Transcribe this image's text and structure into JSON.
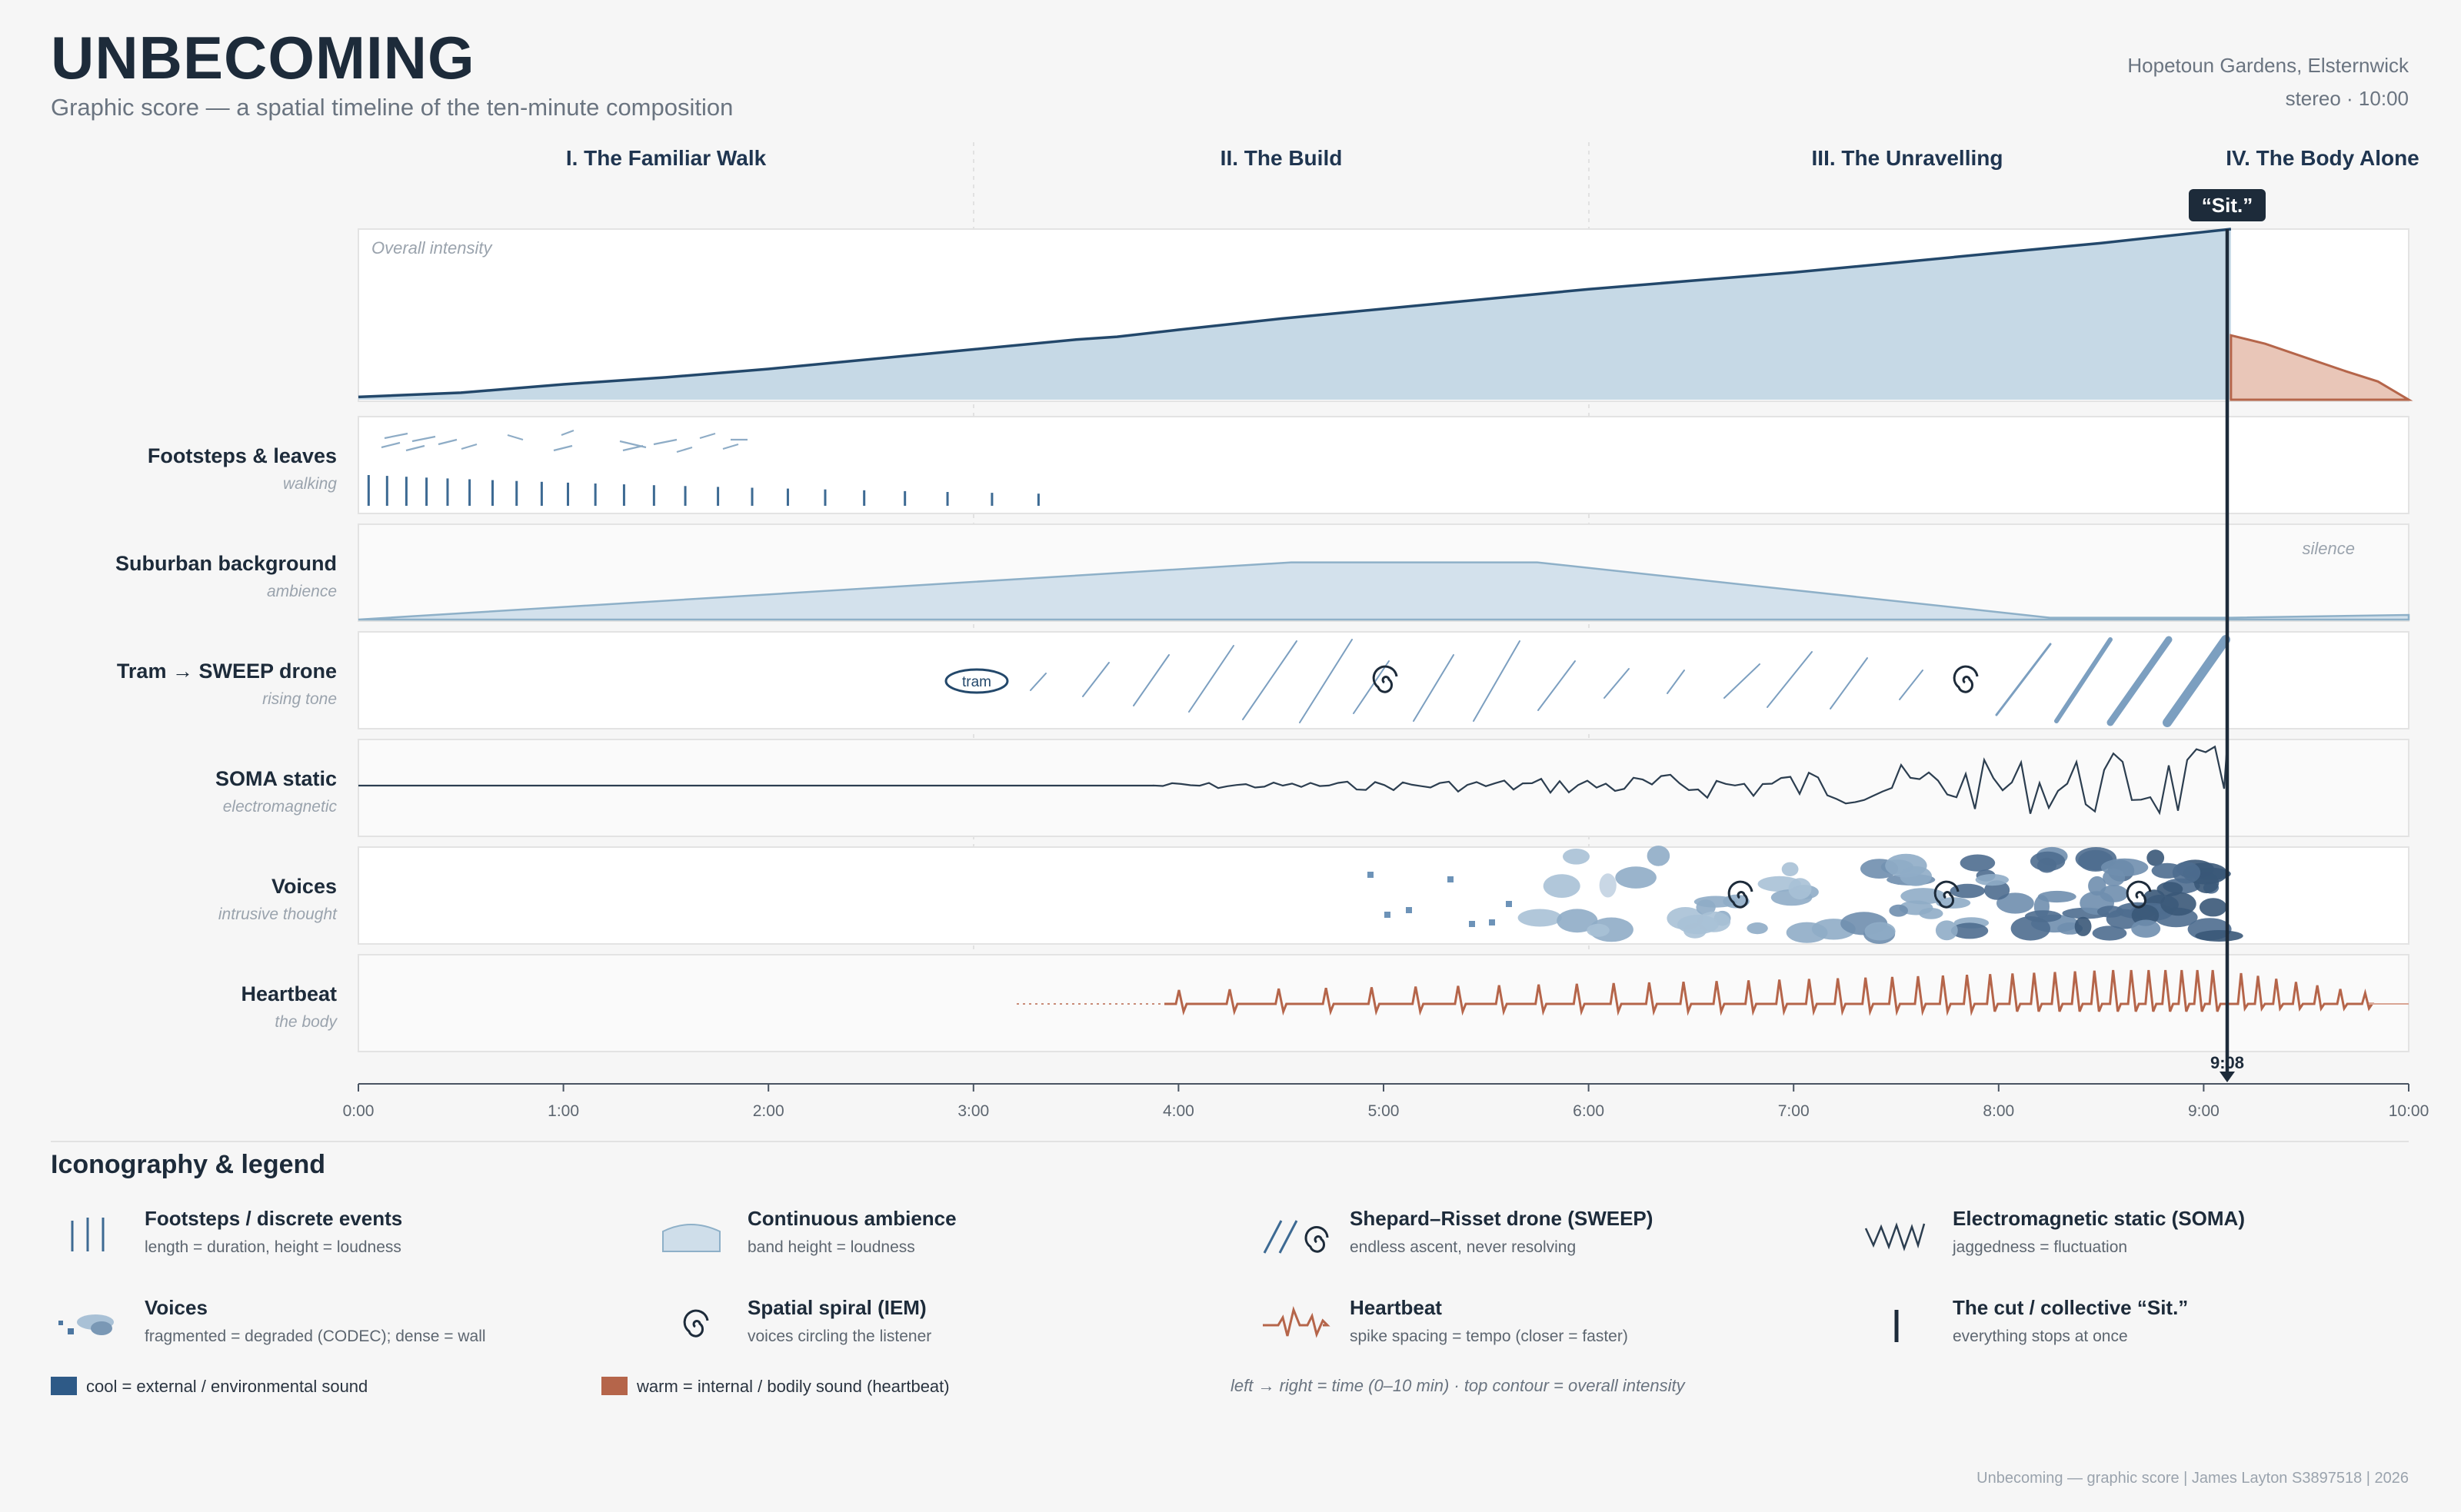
{
  "header": {
    "title": "UNBECOMING",
    "subtitle": "Graphic score — a spatial timeline of the ten-minute composition",
    "venue": "Hopetoun Gardens, Elsternwick",
    "format": "stereo · 10:00"
  },
  "sections": [
    {
      "label": "I. The Familiar Walk",
      "center_min": 1.5
    },
    {
      "label": "II. The Build",
      "center_min": 4.5
    },
    {
      "label": "III. The Unravelling",
      "center_min": 7.55
    },
    {
      "label": "IV. The Body Alone",
      "center_min": 9.6
    }
  ],
  "cut": {
    "label": "“Sit.”",
    "time_label": "9:08",
    "time_min": 9.133
  },
  "intensity": {
    "label": "Overall intensity",
    "rise": [
      [
        0,
        0.02
      ],
      [
        0.5,
        0.05
      ],
      [
        1,
        0.11
      ],
      [
        1.5,
        0.16
      ],
      [
        2,
        0.22
      ],
      [
        2.5,
        0.29
      ],
      [
        3,
        0.36
      ],
      [
        3.5,
        0.43
      ],
      [
        3.7,
        0.45
      ],
      [
        4,
        0.5
      ],
      [
        4.5,
        0.58
      ],
      [
        5,
        0.65
      ],
      [
        5.5,
        0.72
      ],
      [
        6,
        0.79
      ],
      [
        6.5,
        0.85
      ],
      [
        7,
        0.91
      ],
      [
        7.5,
        0.98
      ],
      [
        8,
        1.05
      ],
      [
        8.5,
        1.12
      ],
      [
        9.133,
        1.22
      ]
    ],
    "fade": [
      [
        9.133,
        0.46
      ],
      [
        9.3,
        0.4
      ],
      [
        9.5,
        0.3
      ],
      [
        9.7,
        0.2
      ],
      [
        9.85,
        0.13
      ],
      [
        10,
        0.0
      ]
    ]
  },
  "lanes": [
    {
      "name": "Footsteps & leaves",
      "sub": "walking"
    },
    {
      "name": "Suburban background",
      "sub": "ambience",
      "note": "silence"
    },
    {
      "name": "Tram → SWEEP drone",
      "sub": "rising tone",
      "tag": "tram"
    },
    {
      "name": "SOMA static",
      "sub": "electromagnetic"
    },
    {
      "name": "Voices",
      "sub": "intrusive thought"
    },
    {
      "name": "Heartbeat",
      "sub": "the body"
    }
  ],
  "ambience": [
    [
      0,
      0.0
    ],
    [
      4.55,
      0.62
    ],
    [
      5.75,
      0.62
    ],
    [
      8.25,
      0.02
    ],
    [
      9.133,
      0.02
    ],
    [
      10,
      0.05
    ]
  ],
  "axis": {
    "ticks": [
      "0:00",
      "1:00",
      "2:00",
      "3:00",
      "4:00",
      "5:00",
      "6:00",
      "7:00",
      "8:00",
      "9:00",
      "10:00"
    ]
  },
  "legend": {
    "title": "Iconography & legend",
    "items": [
      {
        "name": "Footsteps / discrete events",
        "desc": "length = duration, height = loudness",
        "icon": "footsteps-icon"
      },
      {
        "name": "Continuous ambience",
        "desc": "band height = loudness",
        "icon": "ambience-icon"
      },
      {
        "name": "Shepard–Risset drone (SWEEP)",
        "desc": "endless ascent, never resolving",
        "icon": "sweep-icon"
      },
      {
        "name": "Electromagnetic static (SOMA)",
        "desc": "jaggedness = fluctuation",
        "icon": "static-icon"
      },
      {
        "name": "Voices",
        "desc": "fragmented = degraded (CODEC); dense = wall",
        "icon": "voices-icon"
      },
      {
        "name": "Spatial spiral (IEM)",
        "desc": "voices circling the listener",
        "icon": "spiral-icon"
      },
      {
        "name": "Heartbeat",
        "desc": "spike spacing = tempo (closer = faster)",
        "icon": "heartbeat-icon"
      },
      {
        "name": "The cut / collective “Sit.”",
        "desc": "everything stops at once",
        "icon": "cut-icon"
      }
    ],
    "swatches": [
      {
        "label": "cool = external / environmental sound",
        "color": "#2e5a87"
      },
      {
        "label": "warm = internal / bodily sound (heartbeat)",
        "color": "#b5654a"
      }
    ],
    "caption": "left → right = time (0–10 min) · top contour = overall intensity"
  },
  "colors": {
    "cool": "#2e5a87",
    "cool_light": "#c9dbe8",
    "warm": "#b5654a",
    "warm_light": "#e8c3b4",
    "ink": "#1d2b3a"
  },
  "footer": "Unbecoming — graphic score | James Layton S3897518 | 2026"
}
